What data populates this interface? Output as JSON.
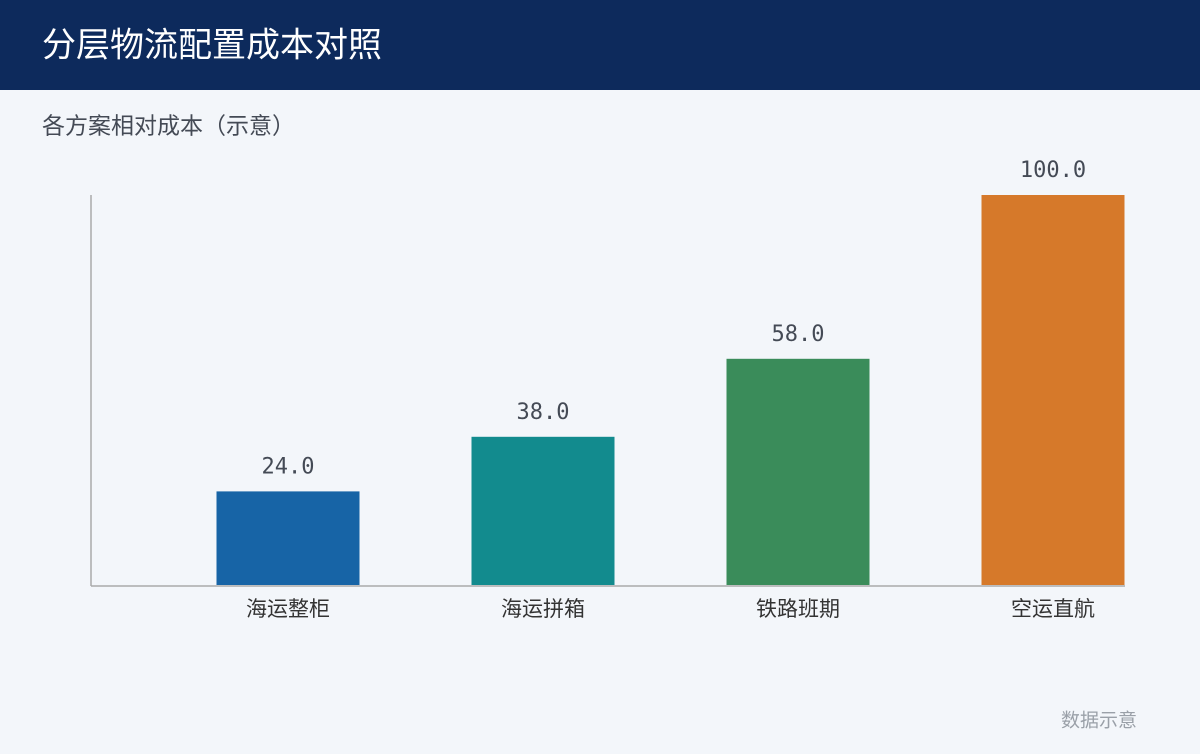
{
  "chart_data": {
    "type": "bar",
    "title": "分层物流配置成本对照",
    "subtitle": "各方案相对成本（示意）",
    "categories": [
      "海运整柜",
      "海运拼箱",
      "铁路班期",
      "空运直航"
    ],
    "values": [
      24,
      38,
      58,
      100
    ],
    "value_labels": [
      "24.0",
      "38.0",
      "58.0",
      "100.0"
    ],
    "colors": [
      "#1764a6",
      "#128b8e",
      "#3a8c5a",
      "#d6792a"
    ],
    "ylim": [
      0,
      100
    ],
    "note": "数据示意"
  }
}
